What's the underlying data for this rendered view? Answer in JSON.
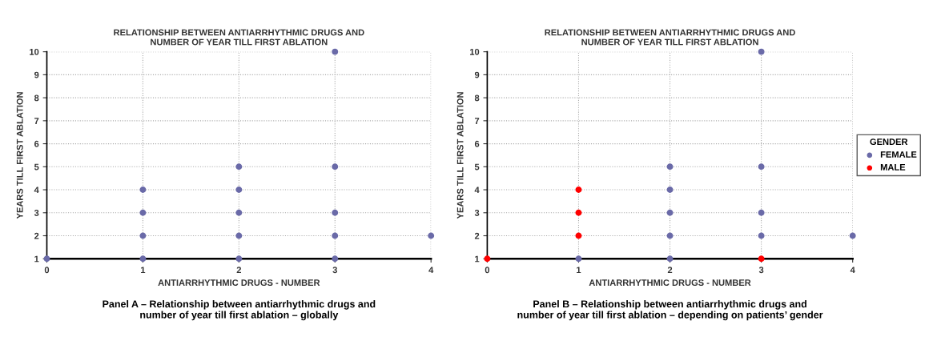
{
  "chart_data": [
    {
      "type": "scatter",
      "title": "RELATIONSHIP BETWEEN ANTIARRHYTHMIC DRUGS AND\nNUMBER OF YEAR TILL FIRST ABLATION",
      "xlabel": "ANTIARRHYTHMIC DRUGS - NUMBER",
      "ylabel": "YEARS TILL FIRST ABLATION",
      "series": [
        {
          "color": "#6a6aa8",
          "x": [
            0,
            1,
            1,
            1,
            1,
            2,
            2,
            2,
            2,
            2,
            3,
            3,
            3,
            3,
            3,
            4
          ],
          "values": [
            1,
            1,
            2,
            3,
            4,
            1,
            2,
            3,
            4,
            5,
            1,
            2,
            3,
            5,
            10,
            2
          ]
        }
      ],
      "xlim": [
        0,
        4
      ],
      "ylim": [
        1,
        10
      ],
      "xticks": [
        0,
        1,
        2,
        3,
        4
      ],
      "yticks": [
        1,
        2,
        3,
        4,
        5,
        6,
        7,
        8,
        9,
        10
      ],
      "grid": true,
      "marker": "circle",
      "legend": false,
      "annotations": [
        "Panel A – Relationship between antiarrhythmic drugs and\nnumber of year till first ablation – globally"
      ]
    },
    {
      "type": "scatter",
      "title": "RELATIONSHIP BETWEEN ANTIARRHYTHMIC DRUGS AND\nNUMBER OF YEAR TILL FIRST ABLATION",
      "xlabel": "ANTIARRHYTHMIC DRUGS - NUMBER",
      "ylabel": "YEARS TILL FIRST ABLATION",
      "legend_title": "GENDER",
      "series": [
        {
          "name": "FEMALE",
          "color": "#6a6aa8",
          "x": [
            1,
            2,
            2,
            2,
            2,
            2,
            3,
            3,
            3,
            3,
            4
          ],
          "values": [
            1,
            1,
            2,
            3,
            4,
            5,
            2,
            3,
            5,
            10,
            2
          ]
        },
        {
          "name": "MALE",
          "color": "#ff0000",
          "x": [
            0,
            1,
            1,
            1,
            3
          ],
          "values": [
            1,
            2,
            3,
            4,
            1
          ]
        }
      ],
      "xlim": [
        0,
        4
      ],
      "ylim": [
        1,
        10
      ],
      "xticks": [
        0,
        1,
        2,
        3,
        4
      ],
      "yticks": [
        1,
        2,
        3,
        4,
        5,
        6,
        7,
        8,
        9,
        10
      ],
      "grid": true,
      "marker": "circle",
      "legend": "right",
      "annotations": [
        "Panel B – Relationship between antiarrhythmic drugs and\nnumber of year till first ablation – depending on patients’ gender"
      ]
    }
  ]
}
